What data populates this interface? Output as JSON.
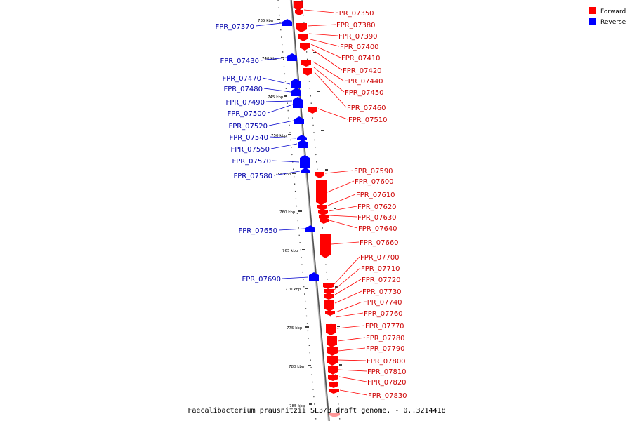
{
  "caption": "Faecalibacterium prausnitzii SL3/3 draft genome. - 0..3214418",
  "legend": [
    {
      "label": "Forward",
      "color": "#ff0000"
    },
    {
      "label": "Reverse",
      "color": "#0000ff"
    }
  ],
  "ticks": [
    "735 kbp",
    "740 kbp",
    "745 kbp",
    "750 kbp",
    "755 kbp",
    "760 kbp",
    "765 kbp",
    "770 kbp",
    "775 kbp",
    "780 kbp",
    "785 kbp"
  ],
  "genes": {
    "forward": [
      "FPR_07350",
      "FPR_07380",
      "FPR_07390",
      "FPR_07400",
      "FPR_07410",
      "FPR_07420",
      "FPR_07440",
      "FPR_07450",
      "FPR_07460",
      "FPR_07510",
      "FPR_07590",
      "FPR_07600",
      "FPR_07610",
      "FPR_07620",
      "FPR_07630",
      "FPR_07640",
      "FPR_07660",
      "FPR_07700",
      "FPR_07710",
      "FPR_07720",
      "FPR_07730",
      "FPR_07740",
      "FPR_07760",
      "FPR_07770",
      "FPR_07780",
      "FPR_07790",
      "FPR_07800",
      "FPR_07810",
      "FPR_07820",
      "FPR_07830"
    ],
    "reverse": [
      "FPR_07370",
      "FPR_07430",
      "FPR_07470",
      "FPR_07480",
      "FPR_07490",
      "FPR_07500",
      "FPR_07520",
      "FPR_07540",
      "FPR_07550",
      "FPR_07570",
      "FPR_07580",
      "FPR_07650",
      "FPR_07690"
    ]
  },
  "colors": {
    "forward": "#ff0000",
    "reverse": "#0000ff",
    "backbone": "#999999"
  }
}
